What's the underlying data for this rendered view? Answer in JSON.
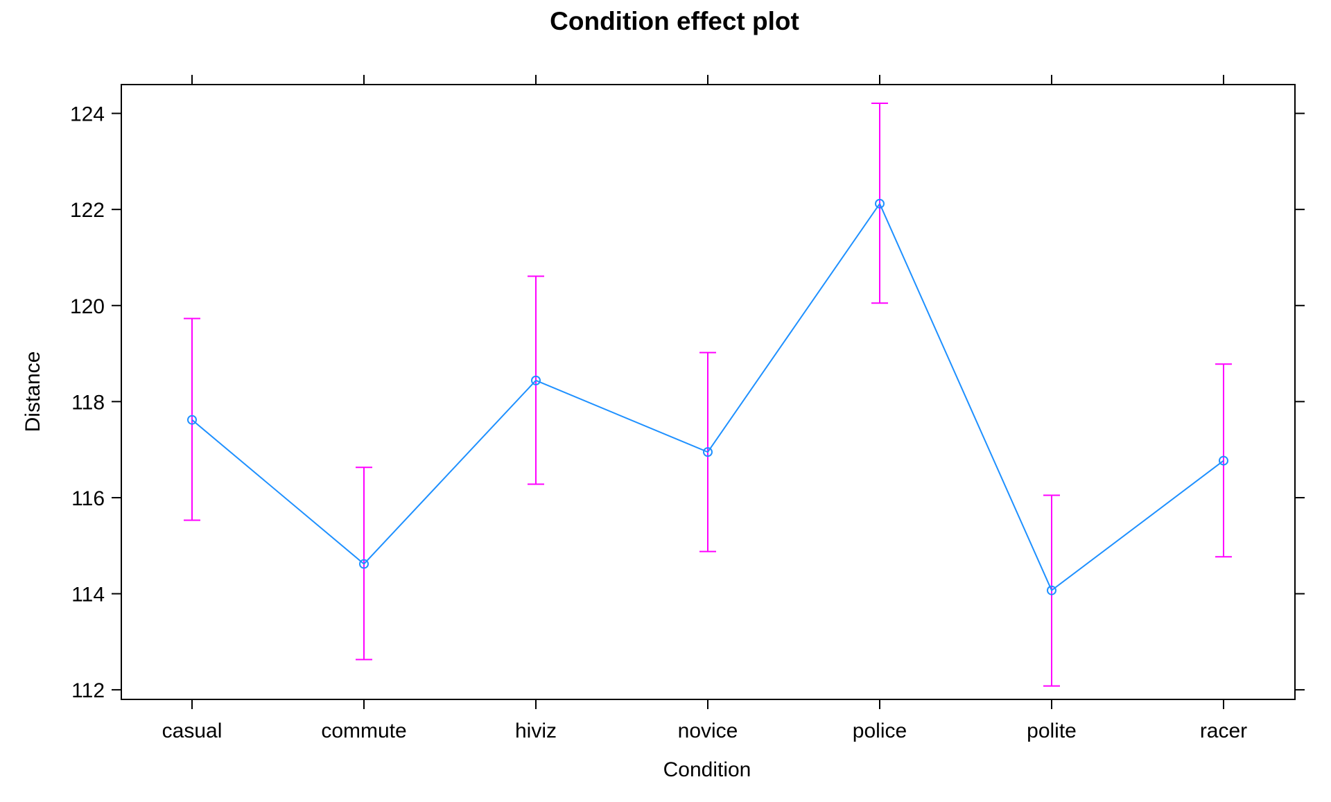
{
  "chart_data": {
    "type": "line",
    "title": "Condition effect plot",
    "xlabel": "Condition",
    "ylabel": "Distance",
    "categories": [
      "casual",
      "commute",
      "hiviz",
      "novice",
      "police",
      "polite",
      "racer"
    ],
    "ylim": [
      111.8,
      124.6
    ],
    "yticks": [
      112,
      114,
      116,
      118,
      120,
      122,
      124
    ],
    "series": [
      {
        "values": [
          117.62,
          114.62,
          118.44,
          116.95,
          122.12,
          114.07,
          116.77
        ],
        "lower": [
          115.53,
          112.63,
          116.28,
          114.88,
          120.05,
          112.08,
          114.77
        ],
        "upper": [
          119.73,
          116.63,
          120.61,
          119.02,
          124.21,
          116.05,
          118.78
        ]
      }
    ],
    "grid": false,
    "colors": {
      "line": "#1E90FF",
      "points": "#1E90FF",
      "error_bars": "#FF00FF",
      "axes": "#000000"
    }
  }
}
